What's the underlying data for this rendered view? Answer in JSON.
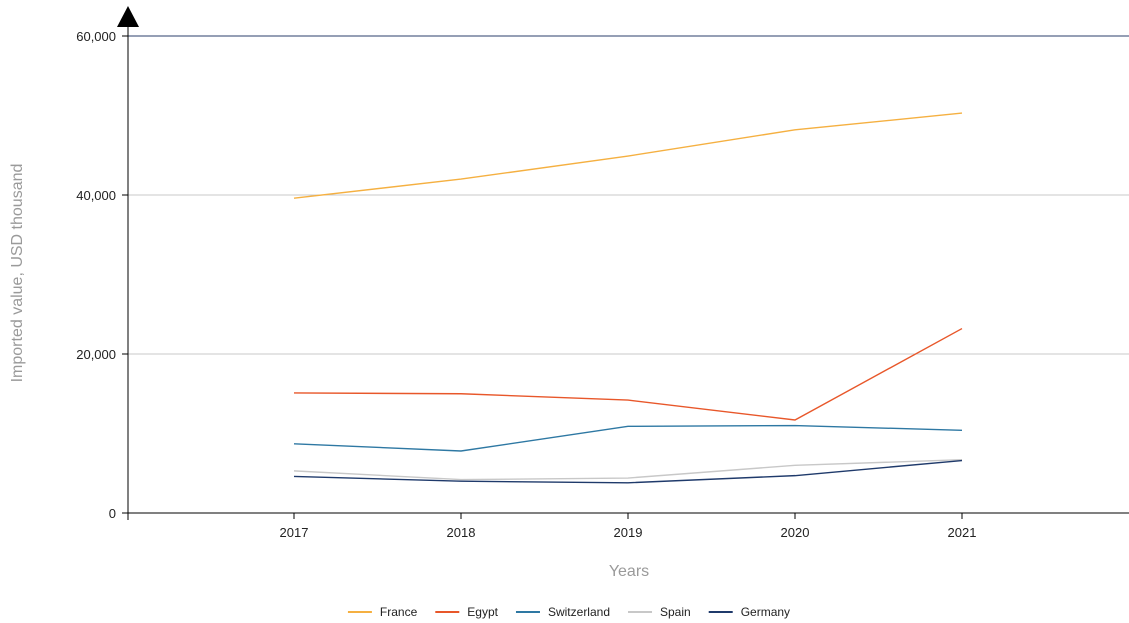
{
  "chart_data": {
    "type": "line",
    "title": "",
    "xlabel": "Years",
    "ylabel": "Imported value, USD thousand",
    "categories": [
      "2017",
      "2018",
      "2019",
      "2020",
      "2021"
    ],
    "ylim": [
      0,
      60000
    ],
    "yticks": [
      0,
      20000,
      40000,
      60000
    ],
    "ytick_labels": [
      "0",
      "20,000",
      "40,000",
      "60,000"
    ],
    "grid": "horizontal",
    "legend_position": "bottom",
    "series": [
      {
        "name": "France",
        "color": "#f5b041",
        "values": [
          39600,
          42000,
          44900,
          48200,
          50300
        ]
      },
      {
        "name": "Egypt",
        "color": "#e8572a",
        "values": [
          15100,
          15000,
          14200,
          11700,
          23200
        ]
      },
      {
        "name": "Switzerland",
        "color": "#2e78a3",
        "values": [
          8700,
          7800,
          10900,
          11000,
          10400
        ]
      },
      {
        "name": "Spain",
        "color": "#c8c8c8",
        "values": [
          5300,
          4200,
          4400,
          6000,
          6700
        ]
      },
      {
        "name": "Germany",
        "color": "#1f3a6b",
        "values": [
          4600,
          4000,
          3800,
          4700,
          6600
        ]
      }
    ]
  }
}
